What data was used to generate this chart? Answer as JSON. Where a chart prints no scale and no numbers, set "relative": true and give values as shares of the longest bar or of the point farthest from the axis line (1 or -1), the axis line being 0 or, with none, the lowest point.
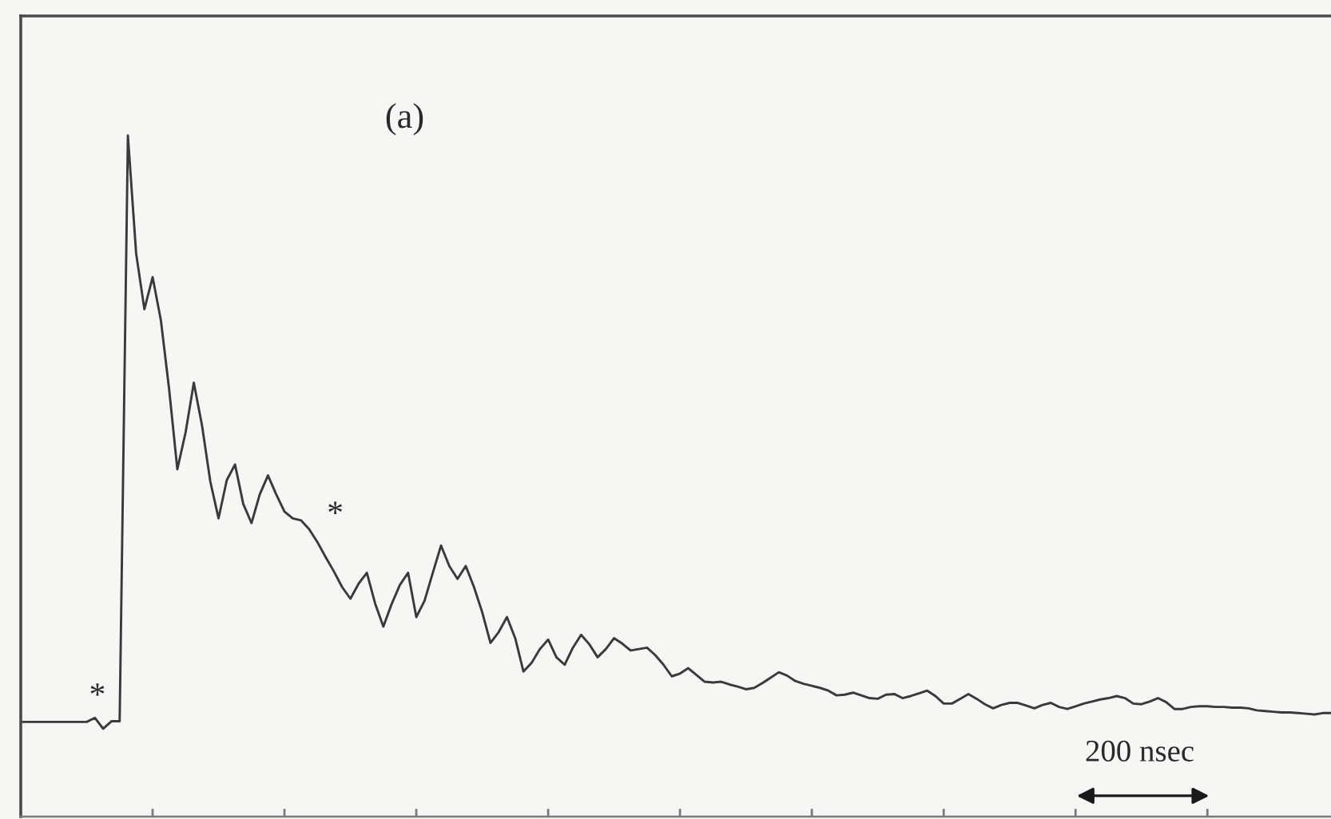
{
  "chart_data": {
    "type": "line",
    "relative": true,
    "color": "#3a3a3a",
    "categories": [
      null,
      null,
      null,
      null,
      null,
      null,
      null,
      null,
      null,
      null,
      null,
      null,
      null,
      null,
      null,
      null,
      null,
      null,
      null,
      null,
      null,
      null,
      null,
      null,
      null,
      null,
      null,
      null,
      null,
      null,
      null,
      null,
      null,
      null,
      null,
      null,
      null,
      null,
      null,
      null,
      null,
      null,
      null,
      null,
      null,
      null,
      null,
      null,
      null,
      null,
      null,
      null,
      null,
      null,
      null,
      null,
      null,
      null,
      null,
      null,
      null,
      null,
      null,
      null,
      null,
      null,
      null,
      null,
      null,
      null,
      null,
      null,
      null,
      null,
      null,
      null,
      null,
      null,
      null,
      null,
      null,
      null,
      null,
      null,
      null,
      null,
      null,
      null,
      null,
      null,
      null,
      null,
      null,
      null,
      null,
      null,
      null,
      null,
      null,
      null,
      null,
      null,
      null,
      null,
      null,
      null,
      null,
      null,
      null,
      null,
      null,
      null,
      null,
      null,
      null,
      null,
      null,
      null,
      null,
      null,
      null,
      null,
      null,
      null,
      null,
      null,
      null,
      null,
      null,
      null,
      null,
      null,
      null,
      null,
      null,
      null,
      null,
      null,
      null,
      null,
      null,
      null,
      null,
      null,
      null,
      null,
      null,
      null,
      null,
      null,
      null,
      null,
      null,
      null,
      null,
      null,
      null,
      null,
      null,
      null
    ],
    "values": [
      0.139,
      0.139,
      0.139,
      0.139,
      0.139,
      0.139,
      0.139,
      0.139,
      0.139,
      0.145,
      0.129,
      0.14,
      0.14,
      1.0,
      0.827,
      0.745,
      0.792,
      0.729,
      0.628,
      0.51,
      0.564,
      0.637,
      0.574,
      0.492,
      0.438,
      0.494,
      0.517,
      0.459,
      0.431,
      0.473,
      0.501,
      0.473,
      0.448,
      0.438,
      0.435,
      0.422,
      0.403,
      0.381,
      0.36,
      0.337,
      0.32,
      0.342,
      0.358,
      0.313,
      0.279,
      0.312,
      0.34,
      0.358,
      0.293,
      0.317,
      0.358,
      0.398,
      0.368,
      0.349,
      0.368,
      0.337,
      0.3,
      0.255,
      0.271,
      0.293,
      0.262,
      0.213,
      0.226,
      0.246,
      0.26,
      0.234,
      0.223,
      0.248,
      0.267,
      0.253,
      0.234,
      0.246,
      0.262,
      0.254,
      0.244,
      0.246,
      0.248,
      0.237,
      0.223,
      0.206,
      0.21,
      0.218,
      0.208,
      0.198,
      0.197,
      0.198,
      0.194,
      0.191,
      0.187,
      0.189,
      0.196,
      0.204,
      0.212,
      0.207,
      0.199,
      0.195,
      0.192,
      0.189,
      0.185,
      0.178,
      0.179,
      0.182,
      0.178,
      0.174,
      0.173,
      0.179,
      0.18,
      0.174,
      0.177,
      0.181,
      0.185,
      0.177,
      0.166,
      0.166,
      0.173,
      0.18,
      0.173,
      0.165,
      0.159,
      0.164,
      0.167,
      0.167,
      0.163,
      0.159,
      0.164,
      0.167,
      0.161,
      0.158,
      0.162,
      0.166,
      0.169,
      0.172,
      0.174,
      0.177,
      0.174,
      0.166,
      0.165,
      0.169,
      0.174,
      0.168,
      0.158,
      0.158,
      0.161,
      0.162,
      0.162,
      0.161,
      0.161,
      0.16,
      0.16,
      0.159,
      0.156,
      0.155,
      0.154,
      0.153,
      0.153,
      0.152,
      0.151,
      0.15,
      0.152,
      0.152
    ],
    "annotations": [
      "(a)",
      "*",
      "*",
      "200 nsec"
    ]
  }
}
